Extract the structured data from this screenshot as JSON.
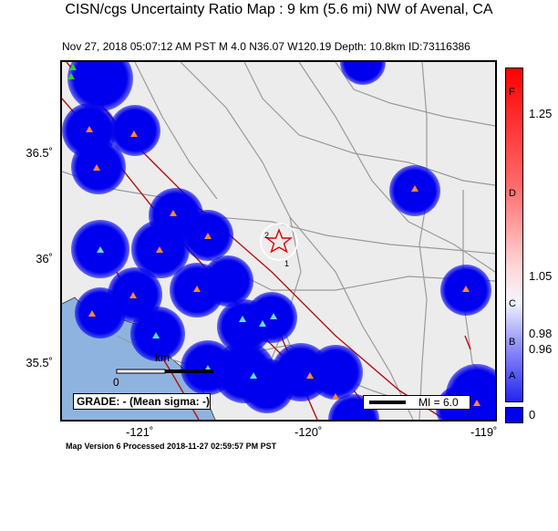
{
  "title": "CISN/cgs Uncertainty Ratio Map : 9 km (5.6 mi) NW of Avenal, CA",
  "subtitle": "Nov 27, 2018 05:07:12 AM PST   M 4.0   N36.07 W120.19   Depth: 10.8km   ID:73116386",
  "axes": {
    "y_ticks": [
      "36.5˚",
      "36˚",
      "35.5˚"
    ],
    "x_ticks": [
      "-121˚",
      "-120˚",
      "-119˚"
    ]
  },
  "colorbar": {
    "labels": [
      "1.25",
      "1.05",
      "0.98",
      "0.96",
      "0"
    ],
    "letters": [
      "F",
      "D",
      "C",
      "B",
      "A"
    ],
    "colors": {
      "top": "#ff0000",
      "mid": "#ffffff",
      "bottom": "#0000ee"
    }
  },
  "map": {
    "scale_unit": "km",
    "scale_zero": "0",
    "epicenter_labels": [
      "2",
      "1"
    ],
    "icons": [
      "epicenter-star-icon",
      "station-triangle-icon"
    ]
  },
  "grade_box": "GRADE: - (Mean sigma: -)",
  "mi_legend": "MI = 6.0",
  "footer": "Map Version 6 Processed 2018-11-27 02:59:57 PM PST"
}
